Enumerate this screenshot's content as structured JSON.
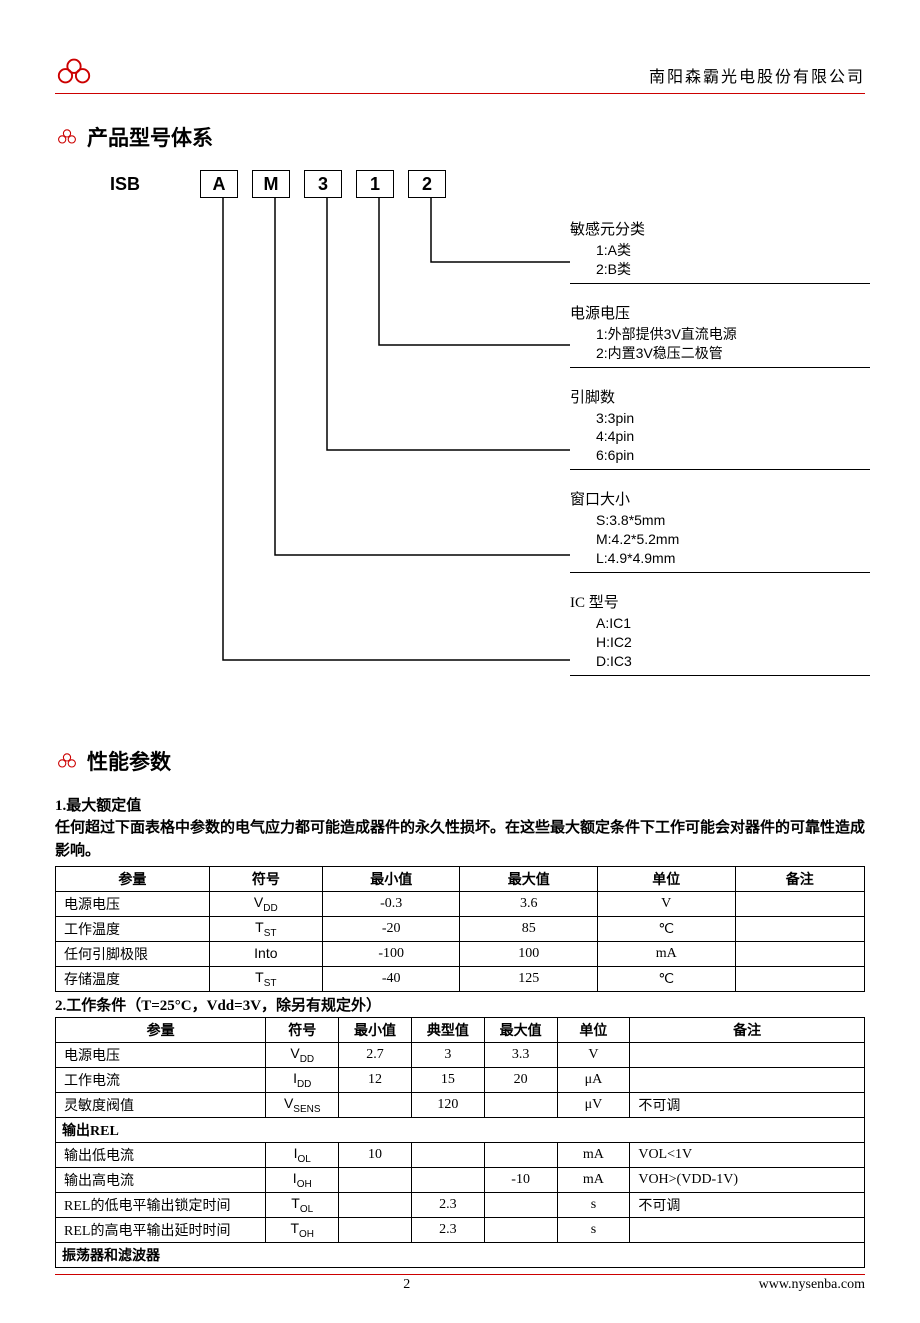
{
  "header": {
    "company": "南阳森霸光电股份有限公司"
  },
  "footer": {
    "page": "2",
    "url": "www.nysenba.com"
  },
  "section1": {
    "title": "产品型号体系",
    "prefix": "ISB",
    "boxes": [
      "A",
      "M",
      "3",
      "1",
      "2"
    ],
    "groups": [
      {
        "title": "敏感元分类",
        "items": [
          "1:A类",
          "2:B类"
        ]
      },
      {
        "title": "电源电压",
        "items": [
          "1:外部提供3V直流电源",
          "2:内置3V稳压二极管"
        ]
      },
      {
        "title": "引脚数",
        "items": [
          "3:3pin",
          "4:4pin",
          "6:6pin"
        ]
      },
      {
        "title": "窗口大小",
        "items": [
          "S:3.8*5mm",
          "M:4.2*5.2mm",
          "L:4.9*4.9mm"
        ]
      },
      {
        "title": "IC 型号",
        "items": [
          "A:IC1",
          "H:IC2",
          "D:IC3"
        ]
      }
    ]
  },
  "section2": {
    "title": "性能参数",
    "t1": {
      "subtitle": "1.最大额定值",
      "desc": "任何超过下面表格中参数的电气应力都可能造成器件的永久性损坏。在这些最大额定条件下工作可能会对器件的可靠性造成影响。",
      "cols": [
        "参量",
        "符号",
        "最小值",
        "最大值",
        "单位",
        "备注"
      ],
      "rows": [
        {
          "name": "电源电压",
          "sym": "V",
          "sub": "DD",
          "min": "-0.3",
          "max": "3.6",
          "unit": "V",
          "note": ""
        },
        {
          "name": "工作温度",
          "sym": "T",
          "sub": "ST",
          "min": "-20",
          "max": "85",
          "unit": "℃",
          "note": ""
        },
        {
          "name": "任何引脚极限",
          "sym": "Into",
          "sub": "",
          "min": "-100",
          "max": "100",
          "unit": "mA",
          "note": ""
        },
        {
          "name": "存储温度",
          "sym": "T",
          "sub": "ST",
          "min": "-40",
          "max": "125",
          "unit": "℃",
          "note": ""
        }
      ]
    },
    "t2": {
      "subtitle": "2.工作条件（T=25°C，Vdd=3V，除另有规定外）",
      "cols": [
        "参量",
        "符号",
        "最小值",
        "典型值",
        "最大值",
        "单位",
        "备注"
      ],
      "rows": [
        {
          "name": "电源电压",
          "sym": "V",
          "sub": "DD",
          "min": "2.7",
          "typ": "3",
          "max": "3.3",
          "unit": "V",
          "note": ""
        },
        {
          "name": "工作电流",
          "sym": "I",
          "sub": "DD",
          "min": "12",
          "typ": "15",
          "max": "20",
          "unit": "μA",
          "note": ""
        },
        {
          "name": "灵敏度阀值",
          "sym": "V",
          "sub": "SENS",
          "min": "",
          "typ": "120",
          "max": "",
          "unit": "μV",
          "note": "不可调"
        }
      ],
      "group1": "输出REL",
      "rows_rel": [
        {
          "name": "输出低电流",
          "sym": "I",
          "sub": "OL",
          "min": "10",
          "typ": "",
          "max": "",
          "unit": "mA",
          "note": "VOL<1V"
        },
        {
          "name": "输出高电流",
          "sym": "I",
          "sub": "OH",
          "min": "",
          "typ": "",
          "max": "-10",
          "unit": "mA",
          "note": "VOH>(VDD-1V)"
        },
        {
          "name": "REL的低电平输出锁定时间",
          "sym": "T",
          "sub": "OL",
          "min": "",
          "typ": "2.3",
          "max": "",
          "unit": "s",
          "note": "不可调"
        },
        {
          "name": "REL的高电平输出延时时间",
          "sym": "T",
          "sub": "OH",
          "min": "",
          "typ": "2.3",
          "max": "",
          "unit": "s",
          "note": ""
        }
      ],
      "group2": "振荡器和滤波器"
    }
  },
  "style": {
    "accent": "#c00",
    "box_stroke": "#000",
    "bg": "#ffffff"
  }
}
